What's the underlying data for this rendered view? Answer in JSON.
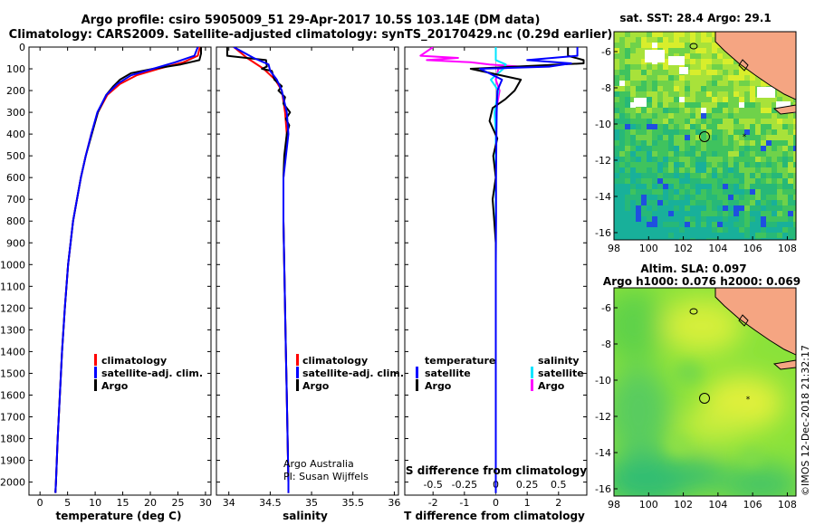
{
  "title_line1": "Argo profile: csiro 5905009_51 29-Apr-2017 10.5S 103.14E (DM data)",
  "title_line2": "Climatology: CARS2009. Satellite-adjusted climatology: synTS_20170429.nc (0.29d earlier)",
  "credit_line1": "Argo Australia",
  "credit_line2": "PI: Susan Wijffels",
  "imos_stamp": "©IMOS 12-Dec-2018 21:32:17",
  "colors": {
    "climatology": "#ff0000",
    "satellite": "#0000ff",
    "argo": "#000000",
    "sat_salinity": "#00e5ff",
    "clim_salinity": "#ff00ff"
  },
  "chart_data": [
    {
      "type": "line",
      "xlabel": "temperature (deg C)",
      "ylabel": "",
      "xlim": [
        -2,
        31
      ],
      "ylim": [
        2060,
        0
      ],
      "xticks": [
        "0",
        "5",
        "10",
        "15",
        "20",
        "25",
        "30"
      ],
      "yticks": [
        "0",
        "100",
        "200",
        "300",
        "400",
        "500",
        "600",
        "700",
        "800",
        "900",
        "1000",
        "1100",
        "1200",
        "1300",
        "1400",
        "1500",
        "1600",
        "1700",
        "1800",
        "1900",
        "2000"
      ],
      "legend": [
        "climatology",
        "satellite-adj. clim.",
        "Argo"
      ],
      "legend_position": "lower-center",
      "series": [
        {
          "name": "climatology",
          "depth": [
            0,
            40,
            70,
            100,
            130,
            170,
            220,
            300,
            400,
            500,
            600,
            800,
            1000,
            1200,
            1400,
            1600,
            1800,
            2000,
            2050
          ],
          "values": [
            29.0,
            28.6,
            26.0,
            21.5,
            17.5,
            14.5,
            12.2,
            10.5,
            9.3,
            8.3,
            7.4,
            6.0,
            5.1,
            4.5,
            4.0,
            3.6,
            3.2,
            2.9,
            2.8
          ]
        },
        {
          "name": "satellite-adj. clim.",
          "depth": [
            0,
            40,
            70,
            100,
            130,
            170,
            220,
            300,
            400,
            500,
            600,
            800,
            1000,
            1200,
            1400,
            1600,
            1800,
            2000,
            2050
          ],
          "values": [
            28.6,
            28.0,
            24.5,
            20.5,
            16.5,
            14.0,
            12.0,
            10.4,
            9.3,
            8.3,
            7.4,
            6.0,
            5.1,
            4.5,
            4.0,
            3.6,
            3.2,
            2.9,
            2.8
          ]
        },
        {
          "name": "Argo",
          "depth": [
            0,
            30,
            60,
            80,
            100,
            120,
            150,
            180,
            220,
            300,
            400,
            500,
            600,
            800,
            1000,
            1200,
            1400,
            1600,
            1800,
            2000,
            2050
          ],
          "values": [
            29.2,
            29.2,
            28.9,
            25.5,
            20.5,
            16.5,
            14.5,
            13.3,
            12.0,
            10.5,
            9.4,
            8.3,
            7.4,
            6.0,
            5.1,
            4.5,
            4.0,
            3.6,
            3.2,
            2.9,
            2.8
          ]
        }
      ]
    },
    {
      "type": "line",
      "xlabel": "salinity",
      "xlim": [
        33.85,
        36.05
      ],
      "ylim": [
        2060,
        0
      ],
      "xticks": [
        "34",
        "34.5",
        "35",
        "35.5",
        "36"
      ],
      "legend": [
        "climatology",
        "satellite-adj. clim.",
        "Argo"
      ],
      "legend_position": "lower-center",
      "series": [
        {
          "name": "climatology",
          "depth": [
            0,
            50,
            100,
            150,
            200,
            300,
            400,
            600,
            800,
            1000,
            1200,
            1400,
            1600,
            1800,
            2000,
            2050
          ],
          "values": [
            34.06,
            34.22,
            34.42,
            34.56,
            34.64,
            34.68,
            34.7,
            34.66,
            34.66,
            34.67,
            34.68,
            34.69,
            34.7,
            34.71,
            34.72,
            34.72
          ]
        },
        {
          "name": "satellite-adj. clim.",
          "depth": [
            0,
            50,
            80,
            110,
            150,
            200,
            300,
            400,
            600,
            800,
            1000,
            1200,
            1400,
            1600,
            1800,
            2000,
            2050
          ],
          "values": [
            34.06,
            34.3,
            34.48,
            34.5,
            34.58,
            34.64,
            34.7,
            34.72,
            34.66,
            34.66,
            34.67,
            34.68,
            34.69,
            34.7,
            34.71,
            34.72,
            34.72
          ]
        },
        {
          "name": "Argo",
          "depth": [
            0,
            40,
            60,
            90,
            100,
            110,
            150,
            180,
            200,
            230,
            260,
            300,
            330,
            360,
            400,
            500,
            600,
            800,
            1000,
            1200,
            1400,
            1600,
            1800,
            2000,
            2050
          ],
          "values": [
            33.98,
            33.98,
            34.45,
            34.46,
            34.4,
            34.52,
            34.55,
            34.64,
            34.6,
            34.68,
            34.66,
            34.74,
            34.69,
            34.73,
            34.7,
            34.67,
            34.66,
            34.66,
            34.67,
            34.68,
            34.69,
            34.7,
            34.71,
            34.72,
            34.72
          ]
        }
      ]
    },
    {
      "type": "line",
      "xlabel": "T difference from climatology",
      "x2label": "S difference from climatology",
      "xlim": [
        -2.9,
        2.9
      ],
      "x2lim": [
        -0.725,
        0.725
      ],
      "ylim": [
        2060,
        0
      ],
      "xticks": [
        "-2",
        "-1",
        "0",
        "1",
        "2"
      ],
      "x2ticks": [
        "-0.5",
        "-0.25",
        "0",
        "0.25",
        "0.5"
      ],
      "legend_title_left": "temperature",
      "legend_title_right": "salinity",
      "legend_left": [
        "satellite",
        "Argo"
      ],
      "legend_right": [
        "satellite",
        "Argo"
      ],
      "series": [
        {
          "name": "satellite",
          "quantity": "temperature",
          "depth": [
            0,
            40,
            60,
            75,
            90,
            100,
            150,
            200,
            300,
            400,
            600,
            800,
            1000,
            1500,
            2000,
            2050
          ],
          "values": [
            2.6,
            2.6,
            1.0,
            2.4,
            1.7,
            -0.5,
            0.2,
            0.05,
            0.03,
            0.02,
            0.01,
            0.01,
            0.0,
            0.0,
            0.0,
            0.0
          ]
        },
        {
          "name": "Argo",
          "quantity": "temperature",
          "depth": [
            0,
            40,
            60,
            75,
            100,
            150,
            200,
            240,
            280,
            340,
            420,
            500,
            600,
            700,
            800,
            900,
            1000,
            1200,
            1500,
            1800,
            2000,
            2050
          ],
          "values": [
            2.3,
            2.3,
            2.8,
            2.8,
            -0.8,
            0.8,
            0.6,
            0.3,
            -0.1,
            -0.2,
            0.05,
            -0.08,
            0.0,
            -0.1,
            -0.05,
            0.0,
            0.0,
            0.0,
            0.0,
            0.0,
            0.0,
            0.0
          ]
        },
        {
          "name": "satellite",
          "quantity": "salinity",
          "depth": [
            0,
            60,
            80,
            100,
            150,
            200,
            300,
            400,
            600,
            800,
            1000,
            1500,
            2000,
            2050
          ],
          "values": [
            0.0,
            0.0,
            0.08,
            0.06,
            -0.04,
            0.02,
            -0.01,
            0.0,
            0.0,
            0.0,
            0.0,
            0.0,
            0.0,
            0.0
          ]
        },
        {
          "name": "Argo",
          "quantity": "salinity",
          "depth": [
            0,
            40,
            50,
            60,
            70,
            80,
            90,
            100,
            150,
            200,
            300,
            400,
            600,
            800,
            1000,
            1500,
            2000,
            2050
          ],
          "values": [
            -0.5,
            -0.6,
            -0.3,
            -0.55,
            -0.2,
            -0.05,
            0.2,
            0.02,
            0.0,
            0.03,
            0.0,
            0.0,
            0.0,
            0.0,
            0.0,
            0.0,
            0.0,
            0.0
          ]
        }
      ]
    },
    {
      "type": "heatmap",
      "title": "sat. SST: 28.4 Argo: 29.1",
      "xlim": [
        98,
        108.5
      ],
      "ylim": [
        -16.4,
        -4.9
      ],
      "xticks": [
        "98",
        "100",
        "102",
        "104",
        "106",
        "108"
      ],
      "yticks": [
        "-6",
        "-8",
        "-10",
        "-12",
        "-14",
        "-16"
      ],
      "argo_position": {
        "lon": 103.14,
        "lat": -10.5
      }
    },
    {
      "type": "heatmap",
      "title": "Altim. SLA: 0.097",
      "subtitle": "Argo h1000: 0.076 h2000: 0.069",
      "xlim": [
        98,
        108.5
      ],
      "ylim": [
        -16.4,
        -4.9
      ],
      "xticks": [
        "98",
        "100",
        "102",
        "104",
        "106",
        "108"
      ],
      "yticks": [
        "-6",
        "-8",
        "-10",
        "-12",
        "-14",
        "-16"
      ],
      "argo_position": {
        "lon": 103.14,
        "lat": -10.5
      }
    }
  ]
}
